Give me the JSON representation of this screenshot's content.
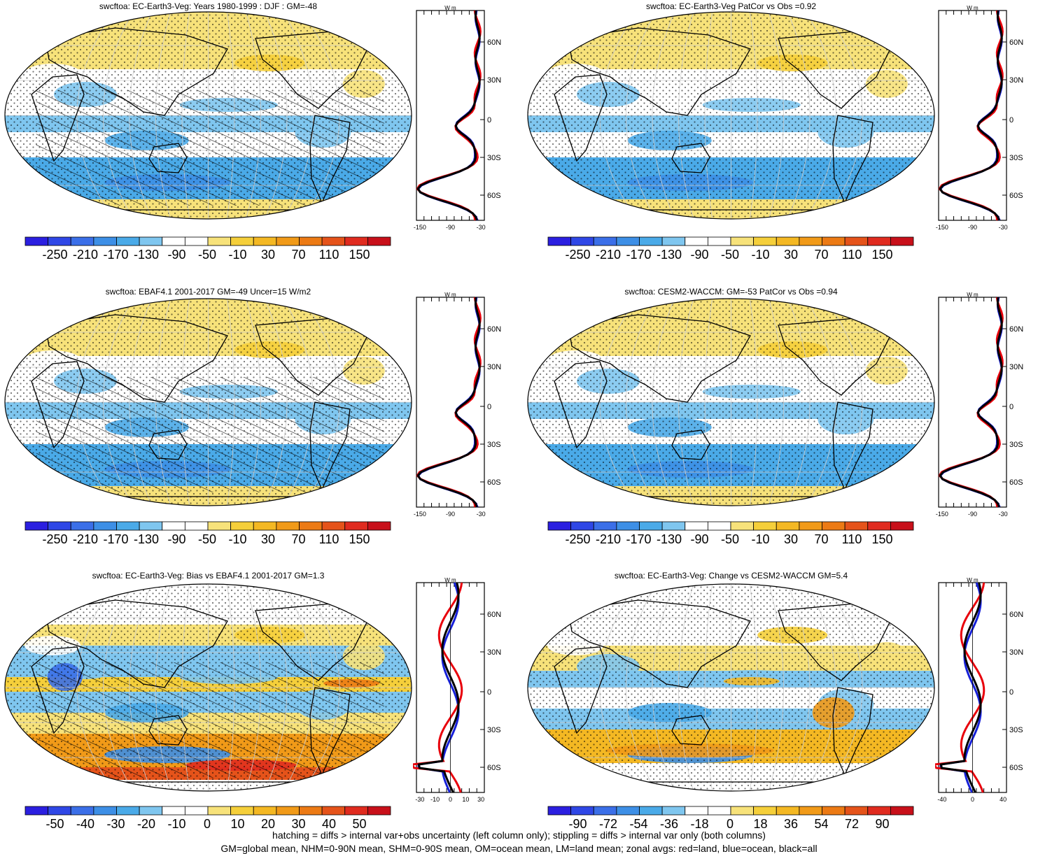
{
  "panels": [
    {
      "id": "p1",
      "title": "swcftoa: EC-Earth3-Veg: Years 1980-1999 : DJF : GM=-48",
      "colorbar": [
        "-250",
        "-210",
        "-170",
        "-130",
        "-90",
        "-50",
        "-10",
        "30",
        "70",
        "110",
        "150"
      ],
      "zonal_top_unit": "W m",
      "zonal_xticks": [
        "-150",
        "-90",
        "-30"
      ],
      "zonal_lat_ticks": [
        "60N",
        "30N",
        "0",
        "30S",
        "60S"
      ],
      "scheme": "absolute",
      "hatched": true
    },
    {
      "id": "p2",
      "title": "swcftoa: EC-Earth3-Veg PatCor vs Obs =0.92",
      "colorbar": [
        "-250",
        "-210",
        "-170",
        "-130",
        "-90",
        "-50",
        "-10",
        "30",
        "70",
        "110",
        "150"
      ],
      "zonal_top_unit": "W m",
      "zonal_xticks": [
        "-150",
        "-90",
        "-30"
      ],
      "zonal_lat_ticks": [
        "60N",
        "30N",
        "0",
        "30S",
        "60S"
      ],
      "scheme": "absolute",
      "hatched": false
    },
    {
      "id": "p3",
      "title": "swcftoa: EBAF4.1 2001-2017 GM=-49 Uncer=15 W/m2",
      "colorbar": [
        "-250",
        "-210",
        "-170",
        "-130",
        "-90",
        "-50",
        "-10",
        "30",
        "70",
        "110",
        "150"
      ],
      "zonal_top_unit": "W m",
      "zonal_xticks": [
        "-150",
        "-90",
        "-30"
      ],
      "zonal_lat_ticks": [
        "60N",
        "30N",
        "0",
        "30S",
        "60S"
      ],
      "scheme": "absolute",
      "hatched": true
    },
    {
      "id": "p4",
      "title": "swcftoa: CESM2-WACCM: GM=-53 PatCor vs Obs =0.94",
      "colorbar": [
        "-250",
        "-210",
        "-170",
        "-130",
        "-90",
        "-50",
        "-10",
        "30",
        "70",
        "110",
        "150"
      ],
      "zonal_top_unit": "W m",
      "zonal_xticks": [
        "-150",
        "-90",
        "-30"
      ],
      "zonal_lat_ticks": [
        "60N",
        "30N",
        "0",
        "30S",
        "60S"
      ],
      "scheme": "absolute",
      "hatched": false
    },
    {
      "id": "p5",
      "title": "swcftoa: EC-Earth3-Veg: Bias vs EBAF4.1 2001-2017 GM=1.3",
      "colorbar": [
        "-50",
        "-40",
        "-30",
        "-20",
        "-10",
        "0",
        "10",
        "20",
        "30",
        "40",
        "50"
      ],
      "zonal_top_unit": "W m",
      "zonal_xticks": [
        "-30",
        "-10",
        "0",
        "10",
        "30"
      ],
      "zonal_lat_ticks": [
        "60N",
        "30N",
        "0",
        "30S",
        "60S"
      ],
      "scheme": "bias",
      "hatched": true
    },
    {
      "id": "p6",
      "title": "swcftoa: EC-Earth3-Veg: Change vs CESM2-WACCM GM=5.4",
      "colorbar": [
        "-90",
        "-72",
        "-54",
        "-36",
        "-18",
        "0",
        "18",
        "36",
        "54",
        "72",
        "90"
      ],
      "zonal_top_unit": "W m",
      "zonal_xticks": [
        "-40",
        "0",
        "40"
      ],
      "zonal_lat_ticks": [
        "60N",
        "30N",
        "0",
        "30S",
        "60S"
      ],
      "scheme": "change",
      "hatched": false
    }
  ],
  "footer": {
    "line1": "hatching = diffs > internal var+obs uncertainty (left column only); stippling = diffs > internal var only (both columns)",
    "line2": "GM=global mean, NHM=0-90N mean, SHM=0-90S mean, OM=ocean mean, LM=land mean; zonal avgs: red=land, blue=ocean, black=all"
  },
  "colors": {
    "palette": [
      "#2b1fe0",
      "#2f47e6",
      "#3b6fe8",
      "#3d8fe6",
      "#4aaae8",
      "#7fc6ef",
      "#ffffff",
      "#ffffff",
      "#f7e27a",
      "#f5cf3a",
      "#f4b823",
      "#f19a18",
      "#ec7a14",
      "#e5531a",
      "#e02b1f",
      "#c8101a"
    ],
    "land_red": "#e8000b",
    "ocean_blue": "#1620d8",
    "all_black": "#000000"
  }
}
